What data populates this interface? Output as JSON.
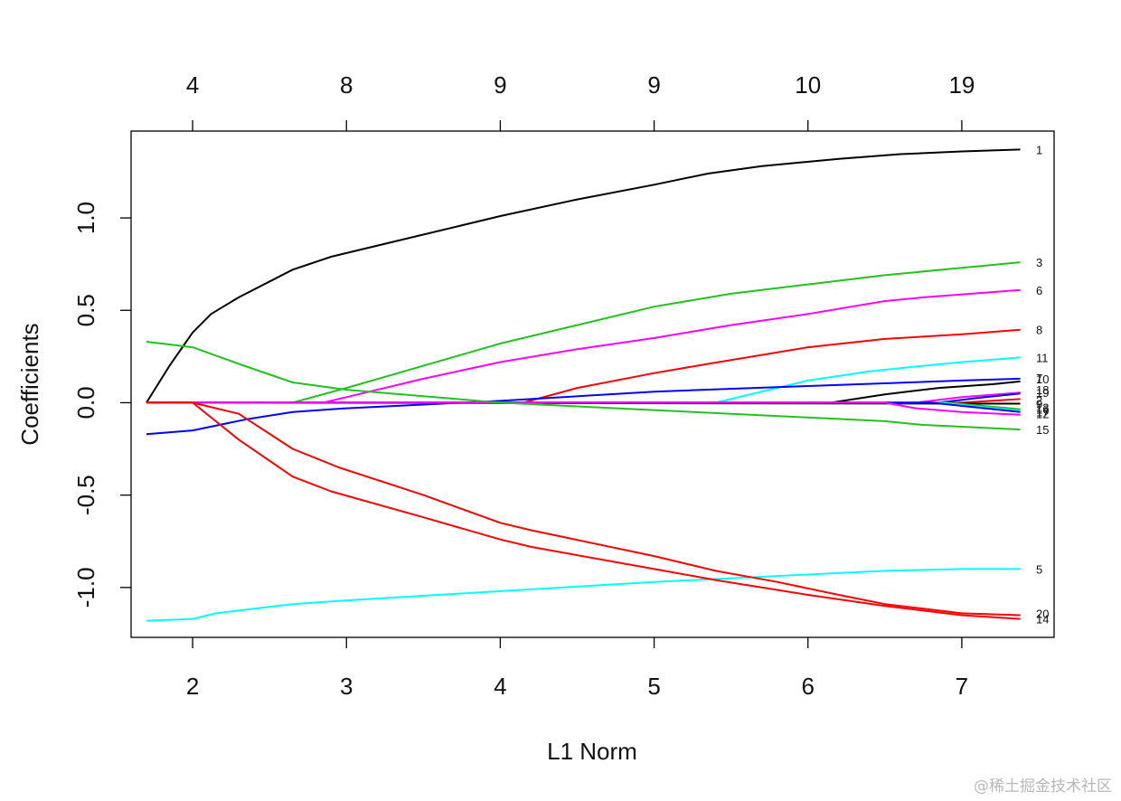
{
  "chart_data": {
    "type": "line",
    "xlabel": "L1 Norm",
    "ylabel": "Coefficients",
    "xlim": [
      1.6,
      7.6
    ],
    "ylim": [
      -1.27,
      1.47
    ],
    "x_ticks": [
      "2",
      "3",
      "4",
      "5",
      "6",
      "7"
    ],
    "y_ticks": [
      "-1.0",
      "-0.5",
      "0.0",
      "0.5",
      "1.0"
    ],
    "top_axis": {
      "ticks": [
        {
          "x": 2,
          "label": "4"
        },
        {
          "x": 3,
          "label": "8"
        },
        {
          "x": 4,
          "label": "9"
        },
        {
          "x": 5,
          "label": "9"
        },
        {
          "x": 6,
          "label": "10"
        },
        {
          "x": 7,
          "label": "19"
        }
      ]
    },
    "series": [
      {
        "name": "1",
        "color": "#000000",
        "points": [
          [
            1.7,
            0
          ],
          [
            1.85,
            0.2
          ],
          [
            2.0,
            0.38
          ],
          [
            2.12,
            0.48
          ],
          [
            2.3,
            0.57
          ],
          [
            2.65,
            0.72
          ],
          [
            2.9,
            0.79
          ],
          [
            3.3,
            0.87
          ],
          [
            3.7,
            0.95
          ],
          [
            4.0,
            1.01
          ],
          [
            4.5,
            1.1
          ],
          [
            5.0,
            1.18
          ],
          [
            5.35,
            1.24
          ],
          [
            5.7,
            1.28
          ],
          [
            6.2,
            1.32
          ],
          [
            6.6,
            1.345
          ],
          [
            7.0,
            1.36
          ],
          [
            7.38,
            1.37
          ]
        ]
      },
      {
        "name": "3",
        "color": "#22c21e",
        "points": [
          [
            1.7,
            0
          ],
          [
            2.65,
            0
          ],
          [
            3.0,
            0.08
          ],
          [
            3.5,
            0.2
          ],
          [
            4.0,
            0.32
          ],
          [
            4.5,
            0.42
          ],
          [
            5.0,
            0.52
          ],
          [
            5.5,
            0.59
          ],
          [
            6.0,
            0.64
          ],
          [
            6.5,
            0.69
          ],
          [
            7.0,
            0.73
          ],
          [
            7.38,
            0.76
          ]
        ]
      },
      {
        "name": "6",
        "color": "#ff00ff",
        "points": [
          [
            1.7,
            0
          ],
          [
            2.85,
            0
          ],
          [
            3.0,
            0.03
          ],
          [
            3.5,
            0.13
          ],
          [
            4.0,
            0.22
          ],
          [
            4.5,
            0.29
          ],
          [
            5.0,
            0.35
          ],
          [
            5.5,
            0.42
          ],
          [
            6.0,
            0.48
          ],
          [
            6.5,
            0.55
          ],
          [
            6.75,
            0.57
          ],
          [
            7.38,
            0.61
          ]
        ]
      },
      {
        "name": "8",
        "color": "#ff0000",
        "points": [
          [
            1.7,
            0
          ],
          [
            4.15,
            0
          ],
          [
            4.5,
            0.08
          ],
          [
            5.0,
            0.16
          ],
          [
            5.35,
            0.21
          ],
          [
            6.0,
            0.3
          ],
          [
            6.5,
            0.345
          ],
          [
            7.0,
            0.37
          ],
          [
            7.38,
            0.395
          ]
        ]
      },
      {
        "name": "11",
        "color": "#00ffff",
        "points": [
          [
            1.7,
            0
          ],
          [
            5.4,
            0
          ],
          [
            6.0,
            0.12
          ],
          [
            6.4,
            0.17
          ],
          [
            6.75,
            0.2
          ],
          [
            7.0,
            0.22
          ],
          [
            7.38,
            0.245
          ]
        ]
      },
      {
        "name": "10",
        "color": "#0000ff",
        "points": [
          [
            1.7,
            -0.17
          ],
          [
            2.0,
            -0.15
          ],
          [
            2.35,
            -0.09
          ],
          [
            2.65,
            -0.05
          ],
          [
            3.0,
            -0.03
          ],
          [
            3.5,
            -0.01
          ],
          [
            4.0,
            0.01
          ],
          [
            5.0,
            0.06
          ],
          [
            6.0,
            0.09
          ],
          [
            7.0,
            0.12
          ],
          [
            7.38,
            0.13
          ]
        ]
      },
      {
        "name": "7",
        "color": "#000000",
        "points": [
          [
            1.7,
            0
          ],
          [
            6.15,
            0
          ],
          [
            6.5,
            0.045
          ],
          [
            6.85,
            0.08
          ],
          [
            7.2,
            0.1
          ],
          [
            7.38,
            0.115
          ]
        ]
      },
      {
        "name": "18",
        "color": "#ff00ff",
        "points": [
          [
            1.7,
            0
          ],
          [
            6.7,
            0
          ],
          [
            7.0,
            0.03
          ],
          [
            7.38,
            0.055
          ]
        ]
      },
      {
        "name": "19",
        "color": "#0000ff",
        "points": [
          [
            1.7,
            0
          ],
          [
            6.85,
            0
          ],
          [
            7.1,
            0.025
          ],
          [
            7.38,
            0.05
          ]
        ]
      },
      {
        "name": "2",
        "color": "#ff0000",
        "points": [
          [
            1.7,
            0
          ],
          [
            7.0,
            0
          ],
          [
            7.38,
            0.02
          ]
        ]
      },
      {
        "name": "9",
        "color": "#000000",
        "points": [
          [
            1.7,
            0
          ],
          [
            7.38,
            -0.005
          ]
        ]
      },
      {
        "name": "13",
        "color": "#22c21e",
        "points": [
          [
            1.7,
            0
          ],
          [
            6.9,
            0
          ],
          [
            7.38,
            -0.035
          ]
        ]
      },
      {
        "name": "16",
        "color": "#00ffff",
        "points": [
          [
            1.7,
            0
          ],
          [
            6.85,
            0
          ],
          [
            7.38,
            -0.045
          ]
        ]
      },
      {
        "name": "17",
        "color": "#0000ff",
        "points": [
          [
            1.7,
            0
          ],
          [
            6.8,
            0
          ],
          [
            7.38,
            -0.05
          ]
        ]
      },
      {
        "name": "12",
        "color": "#ff00ff",
        "points": [
          [
            1.7,
            0
          ],
          [
            6.5,
            0
          ],
          [
            6.7,
            -0.03
          ],
          [
            7.0,
            -0.05
          ],
          [
            7.38,
            -0.065
          ]
        ]
      },
      {
        "name": "15",
        "color": "#22c21e",
        "points": [
          [
            1.7,
            0.33
          ],
          [
            2.0,
            0.3
          ],
          [
            2.3,
            0.21
          ],
          [
            2.65,
            0.11
          ],
          [
            3.0,
            0.07
          ],
          [
            4.0,
            0.0
          ],
          [
            5.0,
            -0.04
          ],
          [
            6.0,
            -0.08
          ],
          [
            6.5,
            -0.1
          ],
          [
            6.75,
            -0.12
          ],
          [
            7.0,
            -0.13
          ],
          [
            7.38,
            -0.145
          ]
        ]
      },
      {
        "name": "5",
        "color": "#00ffff",
        "points": [
          [
            1.7,
            -1.18
          ],
          [
            2.0,
            -1.17
          ],
          [
            2.15,
            -1.14
          ],
          [
            2.35,
            -1.12
          ],
          [
            2.65,
            -1.09
          ],
          [
            3.0,
            -1.07
          ],
          [
            4.0,
            -1.02
          ],
          [
            5.0,
            -0.97
          ],
          [
            6.0,
            -0.93
          ],
          [
            6.5,
            -0.91
          ],
          [
            7.0,
            -0.9
          ],
          [
            7.38,
            -0.9
          ]
        ]
      },
      {
        "name": "20",
        "color": "#ff0000",
        "points": [
          [
            1.7,
            0
          ],
          [
            2.0,
            0
          ],
          [
            2.3,
            -0.06
          ],
          [
            2.65,
            -0.25
          ],
          [
            2.95,
            -0.35
          ],
          [
            3.5,
            -0.5
          ],
          [
            4.0,
            -0.65
          ],
          [
            4.2,
            -0.69
          ],
          [
            5.0,
            -0.83
          ],
          [
            5.4,
            -0.91
          ],
          [
            5.8,
            -0.97
          ],
          [
            6.2,
            -1.04
          ],
          [
            6.5,
            -1.09
          ],
          [
            7.0,
            -1.14
          ],
          [
            7.38,
            -1.15
          ]
        ]
      },
      {
        "name": "14",
        "color": "#ff0000",
        "points": [
          [
            1.7,
            0
          ],
          [
            2.0,
            0
          ],
          [
            2.3,
            -0.2
          ],
          [
            2.65,
            -0.4
          ],
          [
            2.9,
            -0.48
          ],
          [
            3.5,
            -0.62
          ],
          [
            4.0,
            -0.74
          ],
          [
            4.2,
            -0.78
          ],
          [
            5.0,
            -0.9
          ],
          [
            5.4,
            -0.96
          ],
          [
            6.0,
            -1.04
          ],
          [
            6.5,
            -1.1
          ],
          [
            7.0,
            -1.15
          ],
          [
            7.38,
            -1.17
          ]
        ]
      }
    ],
    "series_labels": [
      {
        "name": "1",
        "y": 1.37
      },
      {
        "name": "3",
        "y": 0.76
      },
      {
        "name": "6",
        "y": 0.61
      },
      {
        "name": "8",
        "y": 0.395
      },
      {
        "name": "11",
        "y": 0.245
      },
      {
        "name": "7",
        "y": 0.135
      },
      {
        "name": "10",
        "y": 0.13
      },
      {
        "name": "18",
        "y": 0.07
      },
      {
        "name": "19",
        "y": 0.055
      },
      {
        "name": "2",
        "y": 0.015
      },
      {
        "name": "9",
        "y": -0.005
      },
      {
        "name": "13",
        "y": -0.025
      },
      {
        "name": "16",
        "y": -0.035
      },
      {
        "name": "17",
        "y": -0.05
      },
      {
        "name": "12",
        "y": -0.06
      },
      {
        "name": "15",
        "y": -0.145
      },
      {
        "name": "5",
        "y": -0.9
      },
      {
        "name": "20",
        "y": -1.14
      },
      {
        "name": "14",
        "y": -1.17
      }
    ]
  },
  "watermark": "@稀土掘金技术社区"
}
